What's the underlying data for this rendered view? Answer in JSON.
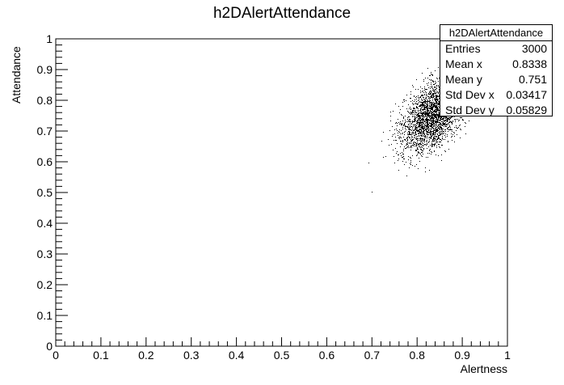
{
  "chart_data": {
    "type": "scatter",
    "title": "h2DAlertAttendance",
    "xlabel": "Alertness",
    "ylabel": "Attendance",
    "xlim": [
      0,
      1
    ],
    "ylim": [
      0,
      1
    ],
    "xticks": [
      "0",
      "0.1",
      "0.2",
      "0.3",
      "0.4",
      "0.5",
      "0.6",
      "0.7",
      "0.8",
      "0.9",
      "1"
    ],
    "yticks": [
      "0",
      "0.1",
      "0.2",
      "0.3",
      "0.4",
      "0.5",
      "0.6",
      "0.7",
      "0.8",
      "0.9",
      "1"
    ],
    "grid": false,
    "distribution": {
      "entries": 3000,
      "mean_x": 0.8338,
      "mean_y": 0.751,
      "std_x": 0.03417,
      "std_y": 0.05829
    },
    "stats_box": {
      "title": "h2DAlertAttendance",
      "rows": [
        {
          "label": "Entries",
          "value": "3000"
        },
        {
          "label": "Mean x",
          "value": "0.8338"
        },
        {
          "label": "Mean y",
          "value": "0.751"
        },
        {
          "label": "Std Dev x",
          "value": "0.03417"
        },
        {
          "label": "Std Dev y",
          "value": "0.05829"
        }
      ]
    }
  }
}
